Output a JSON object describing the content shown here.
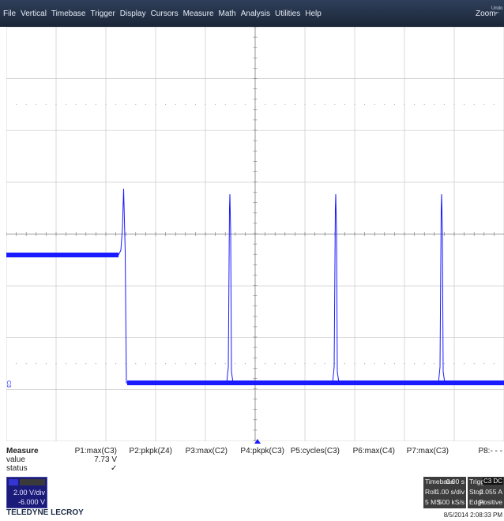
{
  "menu": {
    "items": [
      "File",
      "Vertical",
      "Timebase",
      "Trigger",
      "Display",
      "Cursors",
      "Measure",
      "Math",
      "Analysis",
      "Utilities",
      "Help"
    ],
    "zoom_label": "Zoom",
    "undo_label": "Undo"
  },
  "trace": {
    "channel_marker": "C3",
    "color": "#1a1aff"
  },
  "measure": {
    "title": "Measure",
    "value_label": "value",
    "status_label": "status",
    "params": [
      "P1:max(C3)",
      "P2:pkpk(Z4)",
      "P3:max(C2)",
      "P4:pkpk(C3)",
      "P5:cycles(C3)",
      "P6:max(C4)",
      "P7:max(C3)",
      "P8:- - -"
    ],
    "p1_value": "7.73 V",
    "p1_status": "✓"
  },
  "channel": {
    "vdiv": "2.00 V/div",
    "offset": "-6.000 V"
  },
  "brand": "TELEDYNE LECROY",
  "timebase": {
    "label": "Timebase",
    "delay": "0.00 s",
    "mode": "Roll",
    "time_div": "1.00 s/div",
    "samples": "5 MS",
    "rate": "500 kS/s"
  },
  "trigger": {
    "label": "Trigger",
    "coupling": "C3 DC",
    "state": "Stop",
    "level": "2.055 A",
    "type": "Edge",
    "slope": "Positive"
  },
  "datetime": "8/5/2014 2:08:33 PM"
}
